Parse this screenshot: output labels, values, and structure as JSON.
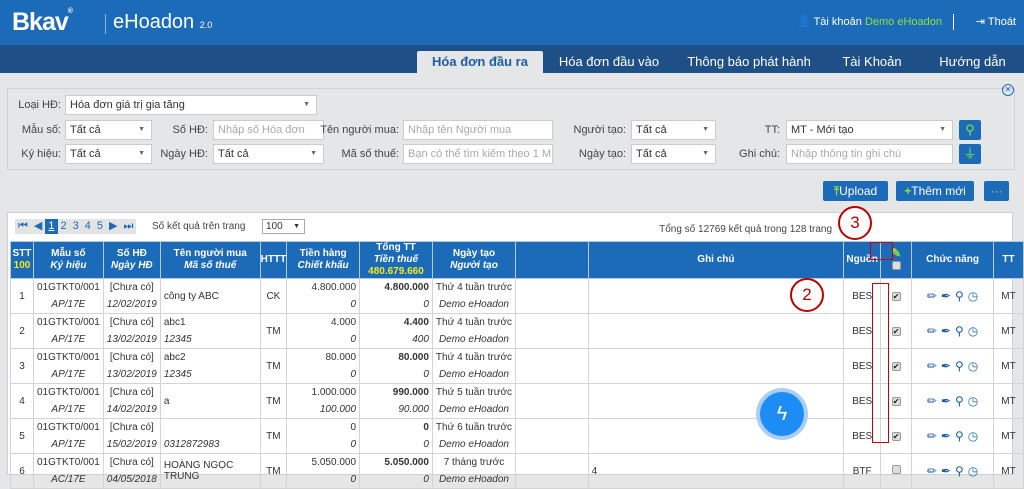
{
  "header": {
    "logo": "Bkav",
    "app_name": "eHoadon",
    "app_version": "2.0",
    "account_label": "Tài khoản",
    "account_user": "Demo eHoadon",
    "logout": "Thoát"
  },
  "nav": {
    "tabs": [
      {
        "label": "Hóa đơn đầu ra",
        "active": true
      },
      {
        "label": "Hóa đơn đầu vào"
      },
      {
        "label": "Thông báo phát hành"
      },
      {
        "label": "Tài Khoản"
      },
      {
        "label": "Hướng dẫn"
      }
    ]
  },
  "filter": {
    "loai_hd": {
      "label": "Loại HĐ:",
      "value": "Hóa đơn giá trị gia tăng"
    },
    "mau_so": {
      "label": "Mẫu số:",
      "value": "Tất cả"
    },
    "so_hd": {
      "label": "Số HĐ:",
      "placeholder": "Nhập số Hóa đơn"
    },
    "ten_nguoi_mua": {
      "label": "Tên người mua:",
      "placeholder": "Nhập tên Người mua"
    },
    "nguoi_tao": {
      "label": "Người tạo:",
      "value": "Tất cả"
    },
    "tt": {
      "label": "TT:",
      "value": "MT - Mới tạo"
    },
    "ky_hieu": {
      "label": "Ký hiệu:",
      "value": "Tất cả"
    },
    "ngay_hd": {
      "label": "Ngày HĐ:",
      "value": "Tất cả"
    },
    "ma_so_thue": {
      "label": "Mã số thuế:",
      "placeholder": "Bạn có thể tìm kiếm theo 1 M"
    },
    "ngay_tao": {
      "label": "Ngày tạo:",
      "value": "Tất cả"
    },
    "ghi_chu": {
      "label": "Ghi chú:",
      "placeholder": "Nhập thông tin ghi chú"
    }
  },
  "actions": {
    "upload": "Upload",
    "add_new": "Thêm mới",
    "more": "···"
  },
  "pager": {
    "pages": [
      "1",
      "2",
      "3",
      "4",
      "5"
    ],
    "current": "1",
    "per_page_label": "Số kết quả trên trang",
    "per_page": "100",
    "total_text": "Tổng số 12769 kết quả trong 128 trang"
  },
  "table": {
    "headers": {
      "stt": "STT",
      "stt_count": "100",
      "mau_so": "Mẫu số",
      "ky_hieu": "Ký hiệu",
      "so_hd": "Số HĐ",
      "ngay_hd": "Ngày HĐ",
      "ten": "Tên người mua",
      "mst": "Mã số thuế",
      "httt": "HTTT",
      "tien_hang": "Tiền hàng",
      "chiet_khau": "Chiết khấu",
      "tong_tt": "Tổng TT",
      "tien_thue": "Tiền thuế",
      "tong_sum": "480.679.660",
      "ngay_tao": "Ngày tạo",
      "nguoi_tao": "Người tạo",
      "ghi_chu": "Ghi chú",
      "nguon": "Nguồn",
      "chuc_nang": "Chức năng",
      "tt": "TT"
    },
    "rows": [
      {
        "stt": "1",
        "mau": "01GTKT0/001",
        "kh": "AP/17E",
        "so": "[Chưa có]",
        "ngay": "12/02/2019",
        "ten": "công ty ABC",
        "mst": "",
        "httt": "CK",
        "tien": "4.800.000",
        "ck": "0",
        "tong": "4.800.000",
        "thue": "0",
        "ntao": "Thứ 4 tuần trước",
        "ngtao": "Demo eHoadon",
        "ghichu": "",
        "nguon": "BES",
        "checked": true,
        "tt": "MT"
      },
      {
        "stt": "2",
        "mau": "01GTKT0/001",
        "kh": "AP/17E",
        "so": "[Chưa có]",
        "ngay": "13/02/2019",
        "ten": "abc1",
        "mst": "12345",
        "httt": "TM",
        "tien": "4.000",
        "ck": "0",
        "tong": "4.400",
        "thue": "400",
        "ntao": "Thứ 4 tuần trước",
        "ngtao": "Demo eHoadon",
        "ghichu": "",
        "nguon": "BES",
        "checked": true,
        "tt": "MT"
      },
      {
        "stt": "3",
        "mau": "01GTKT0/001",
        "kh": "AP/17E",
        "so": "[Chưa có]",
        "ngay": "13/02/2019",
        "ten": "abc2",
        "mst": "12345",
        "httt": "TM",
        "tien": "80.000",
        "ck": "0",
        "tong": "80.000",
        "thue": "0",
        "ntao": "Thứ 4 tuần trước",
        "ngtao": "Demo eHoadon",
        "ghichu": "",
        "nguon": "BES",
        "checked": true,
        "tt": "MT"
      },
      {
        "stt": "4",
        "mau": "01GTKT0/001",
        "kh": "AP/17E",
        "so": "[Chưa có]",
        "ngay": "14/02/2019",
        "ten": "a",
        "mst": "",
        "httt": "TM",
        "tien": "1.000.000",
        "ck": "100.000",
        "tong": "990.000",
        "thue": "90.000",
        "ntao": "Thứ 5 tuần trước",
        "ngtao": "Demo eHoadon",
        "ghichu": "",
        "nguon": "BES",
        "checked": true,
        "tt": "MT"
      },
      {
        "stt": "5",
        "mau": "01GTKT0/001",
        "kh": "AP/17E",
        "so": "[Chưa có]",
        "ngay": "15/02/2019",
        "ten": "",
        "mst": "0312872983",
        "httt": "TM",
        "tien": "0",
        "ck": "0",
        "tong": "0",
        "thue": "0",
        "ntao": "Thứ 6 tuần trước",
        "ngtao": "Demo eHoadon",
        "ghichu": "",
        "nguon": "BES",
        "checked": true,
        "tt": "MT"
      },
      {
        "stt": "6",
        "mau": "01GTKT0/001",
        "kh": "AC/17E",
        "so": "[Chưa có]",
        "ngay": "04/05/2018",
        "ten": "HOÀNG NGỌC TRUNG",
        "mst": "",
        "httt": "TM",
        "tien": "5.050.000",
        "ck": "0",
        "tong": "5.050.000",
        "thue": "0",
        "ntao": "7 tháng trước",
        "ngtao": "Demo eHoadon",
        "ghichu": "4",
        "nguon": "BTF",
        "checked": false,
        "tt": "MT"
      }
    ]
  },
  "annotations": {
    "callout_2": "2",
    "callout_3": "3"
  },
  "colors": {
    "brand": "#1c6bb8",
    "nav": "#1e4f86",
    "accent_green": "#8fe03a",
    "annotation": "#cc0000"
  }
}
